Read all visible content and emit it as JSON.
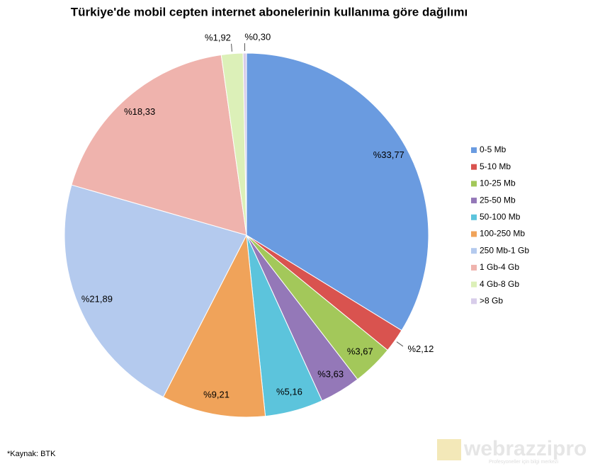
{
  "chart_data": {
    "type": "pie",
    "title": "Türkiye'de mobil cepten internet abonelerinin kullanıma göre dağılımı",
    "categories": [
      "0-5 Mb",
      "5-10 Mb",
      "10-25 Mb",
      "25-50 Mb",
      "50-100 Mb",
      "100-250 Mb",
      "250 Mb-1 Gb",
      "1 Gb-4 Gb",
      "4 Gb-8 Gb",
      ">8 Gb"
    ],
    "values": [
      33.77,
      2.12,
      3.67,
      3.63,
      5.16,
      9.21,
      21.89,
      18.33,
      1.92,
      0.3
    ],
    "value_labels": [
      "%33,77",
      "%2,12",
      "%3,67",
      "%3,63",
      "%5,16",
      "%9,21",
      "%21,89",
      "%18,33",
      "%1,92",
      "%0,30"
    ],
    "colors": [
      "#6a9be0",
      "#d9534f",
      "#a3c85a",
      "#9478b8",
      "#5cc4dc",
      "#f0a35a",
      "#b4caee",
      "#efb3ad",
      "#dcf0b8",
      "#d8cdea"
    ],
    "legend": "right"
  },
  "source": "*Kaynak: BTK",
  "watermark": {
    "brand": "webrazzipro",
    "tagline": "Profesyoneller için bilgi merkezi"
  }
}
